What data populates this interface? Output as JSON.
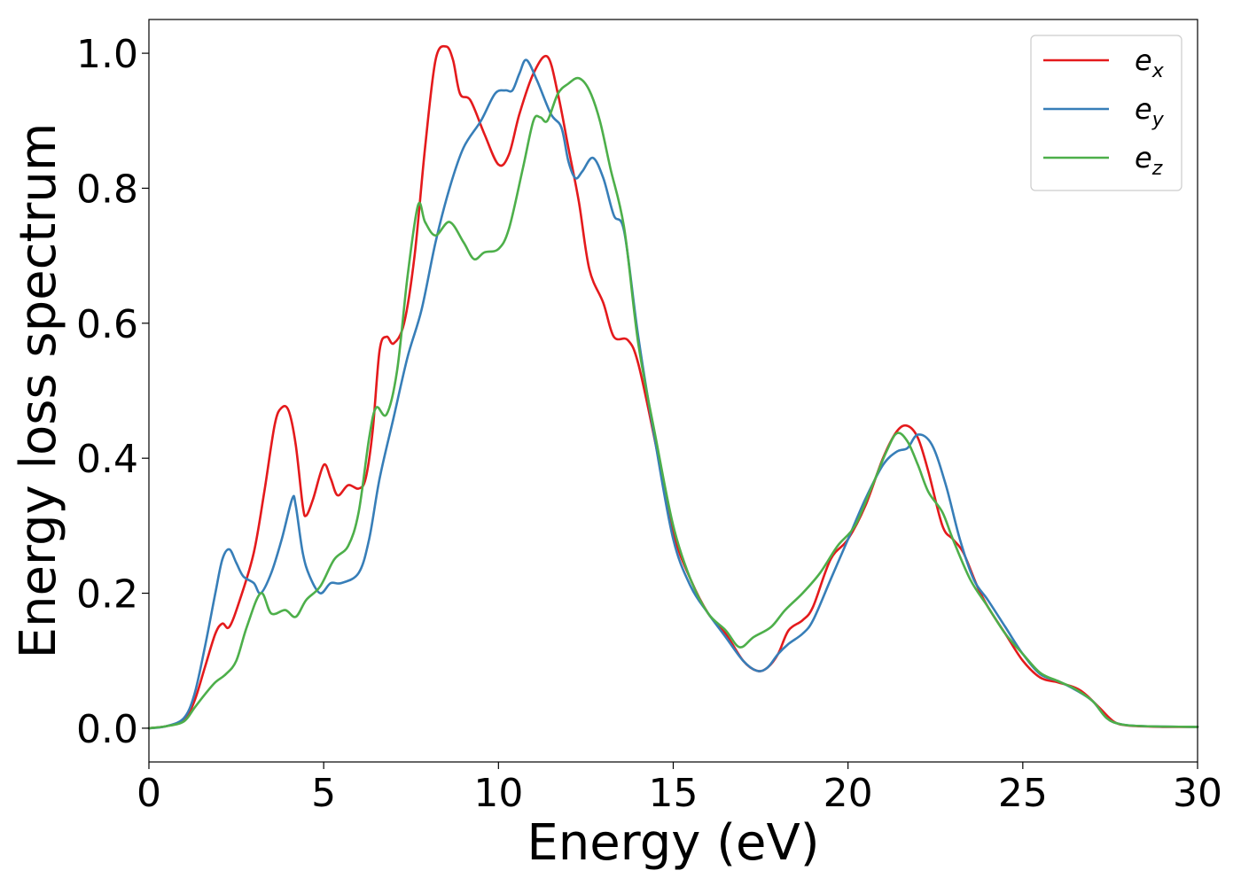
{
  "chart_data": {
    "type": "line",
    "title": "",
    "xlabel": "Energy (eV)",
    "ylabel": "Energy loss spectrum",
    "xlim": [
      0,
      30
    ],
    "ylim": [
      -0.05,
      1.05
    ],
    "xticks": [
      0,
      5,
      10,
      15,
      20,
      25,
      30
    ],
    "xtick_labels": [
      "0",
      "5",
      "10",
      "15",
      "20",
      "25",
      "30"
    ],
    "yticks": [
      0.0,
      0.2,
      0.4,
      0.6,
      0.8,
      1.0
    ],
    "ytick_labels": [
      "0.0",
      "0.2",
      "0.4",
      "0.6",
      "0.8",
      "1.0"
    ],
    "grid": false,
    "legend_position": "top-right",
    "series": [
      {
        "name": "e_x",
        "legend_base": "e",
        "legend_sub": "x",
        "color": "#e41a1c",
        "points": [
          [
            0,
            0.0
          ],
          [
            0.5,
            0.003
          ],
          [
            1.0,
            0.012
          ],
          [
            1.3,
            0.04
          ],
          [
            1.6,
            0.09
          ],
          [
            1.9,
            0.14
          ],
          [
            2.1,
            0.155
          ],
          [
            2.3,
            0.15
          ],
          [
            2.6,
            0.19
          ],
          [
            3.0,
            0.26
          ],
          [
            3.3,
            0.35
          ],
          [
            3.6,
            0.45
          ],
          [
            3.8,
            0.475
          ],
          [
            4.0,
            0.47
          ],
          [
            4.2,
            0.42
          ],
          [
            4.4,
            0.33
          ],
          [
            4.5,
            0.315
          ],
          [
            4.7,
            0.34
          ],
          [
            5.0,
            0.39
          ],
          [
            5.2,
            0.37
          ],
          [
            5.4,
            0.345
          ],
          [
            5.7,
            0.36
          ],
          [
            6.0,
            0.355
          ],
          [
            6.2,
            0.37
          ],
          [
            6.4,
            0.44
          ],
          [
            6.6,
            0.56
          ],
          [
            6.8,
            0.58
          ],
          [
            7.0,
            0.57
          ],
          [
            7.3,
            0.6
          ],
          [
            7.6,
            0.7
          ],
          [
            7.9,
            0.86
          ],
          [
            8.2,
            0.99
          ],
          [
            8.5,
            1.01
          ],
          [
            8.7,
            0.99
          ],
          [
            8.9,
            0.94
          ],
          [
            9.2,
            0.93
          ],
          [
            9.6,
            0.88
          ],
          [
            10.0,
            0.835
          ],
          [
            10.3,
            0.85
          ],
          [
            10.6,
            0.91
          ],
          [
            11.0,
            0.97
          ],
          [
            11.4,
            0.995
          ],
          [
            11.7,
            0.94
          ],
          [
            12.0,
            0.86
          ],
          [
            12.3,
            0.78
          ],
          [
            12.6,
            0.68
          ],
          [
            13.0,
            0.63
          ],
          [
            13.3,
            0.58
          ],
          [
            13.7,
            0.575
          ],
          [
            14.0,
            0.54
          ],
          [
            14.5,
            0.42
          ],
          [
            15.0,
            0.29
          ],
          [
            15.5,
            0.22
          ],
          [
            16.0,
            0.17
          ],
          [
            16.5,
            0.14
          ],
          [
            17.0,
            0.1
          ],
          [
            17.4,
            0.085
          ],
          [
            17.7,
            0.09
          ],
          [
            18.0,
            0.11
          ],
          [
            18.3,
            0.145
          ],
          [
            18.7,
            0.16
          ],
          [
            19.0,
            0.18
          ],
          [
            19.5,
            0.25
          ],
          [
            20.0,
            0.28
          ],
          [
            20.5,
            0.33
          ],
          [
            21.0,
            0.4
          ],
          [
            21.4,
            0.44
          ],
          [
            21.7,
            0.448
          ],
          [
            22.0,
            0.43
          ],
          [
            22.3,
            0.38
          ],
          [
            22.7,
            0.3
          ],
          [
            23.0,
            0.28
          ],
          [
            23.3,
            0.26
          ],
          [
            23.7,
            0.21
          ],
          [
            24.0,
            0.18
          ],
          [
            24.5,
            0.14
          ],
          [
            25.0,
            0.1
          ],
          [
            25.5,
            0.075
          ],
          [
            26.0,
            0.068
          ],
          [
            26.5,
            0.06
          ],
          [
            26.8,
            0.05
          ],
          [
            27.2,
            0.03
          ],
          [
            27.6,
            0.01
          ],
          [
            28.0,
            0.004
          ],
          [
            29.0,
            0.002
          ],
          [
            30.0,
            0.002
          ]
        ]
      },
      {
        "name": "e_y",
        "legend_base": "e",
        "legend_sub": "y",
        "color": "#377eb8",
        "points": [
          [
            0,
            0.0
          ],
          [
            0.5,
            0.003
          ],
          [
            1.0,
            0.015
          ],
          [
            1.3,
            0.05
          ],
          [
            1.6,
            0.12
          ],
          [
            1.9,
            0.2
          ],
          [
            2.1,
            0.25
          ],
          [
            2.3,
            0.265
          ],
          [
            2.5,
            0.245
          ],
          [
            2.7,
            0.225
          ],
          [
            3.0,
            0.215
          ],
          [
            3.2,
            0.2
          ],
          [
            3.5,
            0.23
          ],
          [
            3.8,
            0.28
          ],
          [
            4.1,
            0.34
          ],
          [
            4.2,
            0.33
          ],
          [
            4.4,
            0.26
          ],
          [
            4.6,
            0.225
          ],
          [
            4.9,
            0.2
          ],
          [
            5.2,
            0.215
          ],
          [
            5.5,
            0.215
          ],
          [
            6.0,
            0.23
          ],
          [
            6.3,
            0.28
          ],
          [
            6.6,
            0.37
          ],
          [
            7.0,
            0.46
          ],
          [
            7.4,
            0.55
          ],
          [
            7.8,
            0.62
          ],
          [
            8.2,
            0.72
          ],
          [
            8.6,
            0.8
          ],
          [
            9.0,
            0.86
          ],
          [
            9.5,
            0.9
          ],
          [
            9.9,
            0.94
          ],
          [
            10.2,
            0.945
          ],
          [
            10.4,
            0.945
          ],
          [
            10.6,
            0.97
          ],
          [
            10.8,
            0.99
          ],
          [
            11.1,
            0.96
          ],
          [
            11.5,
            0.91
          ],
          [
            11.8,
            0.89
          ],
          [
            12.0,
            0.84
          ],
          [
            12.2,
            0.815
          ],
          [
            12.4,
            0.825
          ],
          [
            12.7,
            0.845
          ],
          [
            13.0,
            0.815
          ],
          [
            13.3,
            0.76
          ],
          [
            13.6,
            0.735
          ],
          [
            14.0,
            0.58
          ],
          [
            14.5,
            0.42
          ],
          [
            15.0,
            0.28
          ],
          [
            15.5,
            0.21
          ],
          [
            16.0,
            0.17
          ],
          [
            16.5,
            0.135
          ],
          [
            17.0,
            0.1
          ],
          [
            17.4,
            0.085
          ],
          [
            17.7,
            0.09
          ],
          [
            18.0,
            0.11
          ],
          [
            18.3,
            0.125
          ],
          [
            18.7,
            0.14
          ],
          [
            19.0,
            0.16
          ],
          [
            19.5,
            0.22
          ],
          [
            20.0,
            0.28
          ],
          [
            20.5,
            0.34
          ],
          [
            21.0,
            0.39
          ],
          [
            21.4,
            0.41
          ],
          [
            21.7,
            0.415
          ],
          [
            22.0,
            0.435
          ],
          [
            22.4,
            0.42
          ],
          [
            22.8,
            0.36
          ],
          [
            23.2,
            0.28
          ],
          [
            23.6,
            0.22
          ],
          [
            24.0,
            0.19
          ],
          [
            24.5,
            0.15
          ],
          [
            25.0,
            0.11
          ],
          [
            25.5,
            0.08
          ],
          [
            26.0,
            0.07
          ],
          [
            26.5,
            0.057
          ],
          [
            27.0,
            0.04
          ],
          [
            27.4,
            0.015
          ],
          [
            27.8,
            0.006
          ],
          [
            28.5,
            0.003
          ],
          [
            30.0,
            0.002
          ]
        ]
      },
      {
        "name": "e_z",
        "legend_base": "e",
        "legend_sub": "z",
        "color": "#4daf4a",
        "points": [
          [
            0,
            0.0
          ],
          [
            0.5,
            0.003
          ],
          [
            1.0,
            0.01
          ],
          [
            1.3,
            0.03
          ],
          [
            1.6,
            0.05
          ],
          [
            1.9,
            0.068
          ],
          [
            2.2,
            0.08
          ],
          [
            2.5,
            0.1
          ],
          [
            2.8,
            0.15
          ],
          [
            3.2,
            0.2
          ],
          [
            3.5,
            0.17
          ],
          [
            3.9,
            0.175
          ],
          [
            4.2,
            0.165
          ],
          [
            4.5,
            0.19
          ],
          [
            4.9,
            0.21
          ],
          [
            5.3,
            0.25
          ],
          [
            5.7,
            0.27
          ],
          [
            6.0,
            0.32
          ],
          [
            6.3,
            0.43
          ],
          [
            6.5,
            0.475
          ],
          [
            6.8,
            0.465
          ],
          [
            7.1,
            0.53
          ],
          [
            7.4,
            0.67
          ],
          [
            7.7,
            0.775
          ],
          [
            7.9,
            0.75
          ],
          [
            8.2,
            0.73
          ],
          [
            8.6,
            0.75
          ],
          [
            9.0,
            0.72
          ],
          [
            9.3,
            0.695
          ],
          [
            9.6,
            0.705
          ],
          [
            10.0,
            0.71
          ],
          [
            10.3,
            0.74
          ],
          [
            10.7,
            0.83
          ],
          [
            11.0,
            0.9
          ],
          [
            11.2,
            0.905
          ],
          [
            11.4,
            0.9
          ],
          [
            11.7,
            0.94
          ],
          [
            12.0,
            0.955
          ],
          [
            12.3,
            0.963
          ],
          [
            12.6,
            0.945
          ],
          [
            12.9,
            0.9
          ],
          [
            13.2,
            0.83
          ],
          [
            13.6,
            0.74
          ],
          [
            14.0,
            0.57
          ],
          [
            14.5,
            0.43
          ],
          [
            15.0,
            0.3
          ],
          [
            15.5,
            0.22
          ],
          [
            16.0,
            0.17
          ],
          [
            16.5,
            0.145
          ],
          [
            16.9,
            0.12
          ],
          [
            17.3,
            0.135
          ],
          [
            17.8,
            0.15
          ],
          [
            18.2,
            0.175
          ],
          [
            18.7,
            0.2
          ],
          [
            19.2,
            0.23
          ],
          [
            19.7,
            0.27
          ],
          [
            20.2,
            0.3
          ],
          [
            20.7,
            0.36
          ],
          [
            21.1,
            0.41
          ],
          [
            21.4,
            0.437
          ],
          [
            21.7,
            0.425
          ],
          [
            22.0,
            0.39
          ],
          [
            22.3,
            0.35
          ],
          [
            22.7,
            0.32
          ],
          [
            23.0,
            0.28
          ],
          [
            23.5,
            0.22
          ],
          [
            24.0,
            0.18
          ],
          [
            24.5,
            0.14
          ],
          [
            25.0,
            0.11
          ],
          [
            25.5,
            0.082
          ],
          [
            26.0,
            0.07
          ],
          [
            26.5,
            0.058
          ],
          [
            27.0,
            0.04
          ],
          [
            27.4,
            0.015
          ],
          [
            27.8,
            0.006
          ],
          [
            28.5,
            0.003
          ],
          [
            30.0,
            0.002
          ]
        ]
      }
    ]
  }
}
